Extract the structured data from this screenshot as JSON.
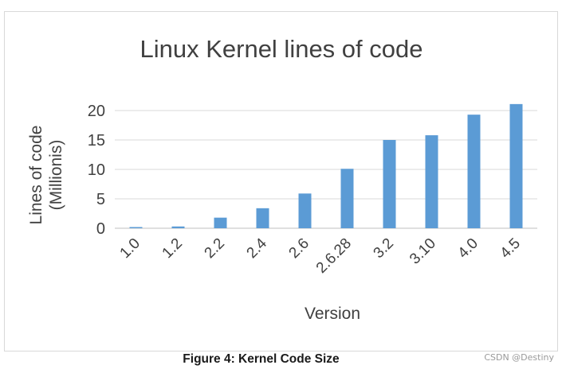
{
  "chart_data": {
    "type": "bar",
    "title": "Linux Kernel lines of code",
    "xlabel": "Version",
    "ylabel": "Lines of code (Millionis)",
    "ylabel_lines": [
      "Lines of code",
      "(Millionis)"
    ],
    "categories": [
      "1.0",
      "1.2",
      "2.2",
      "2.4",
      "2.6",
      "2.6.28",
      "3.2",
      "3.10",
      "4.0",
      "4.5"
    ],
    "values": [
      0.2,
      0.3,
      1.8,
      3.4,
      5.9,
      10.1,
      15.0,
      15.8,
      19.3,
      21.1
    ],
    "ylim": [
      0,
      20
    ],
    "yticks": [
      0,
      5,
      10,
      15,
      20
    ],
    "grid": true,
    "bar_color": "#5b9bd5"
  },
  "caption": "Figure 4: Kernel Code Size",
  "watermark": "CSDN @Destiny"
}
